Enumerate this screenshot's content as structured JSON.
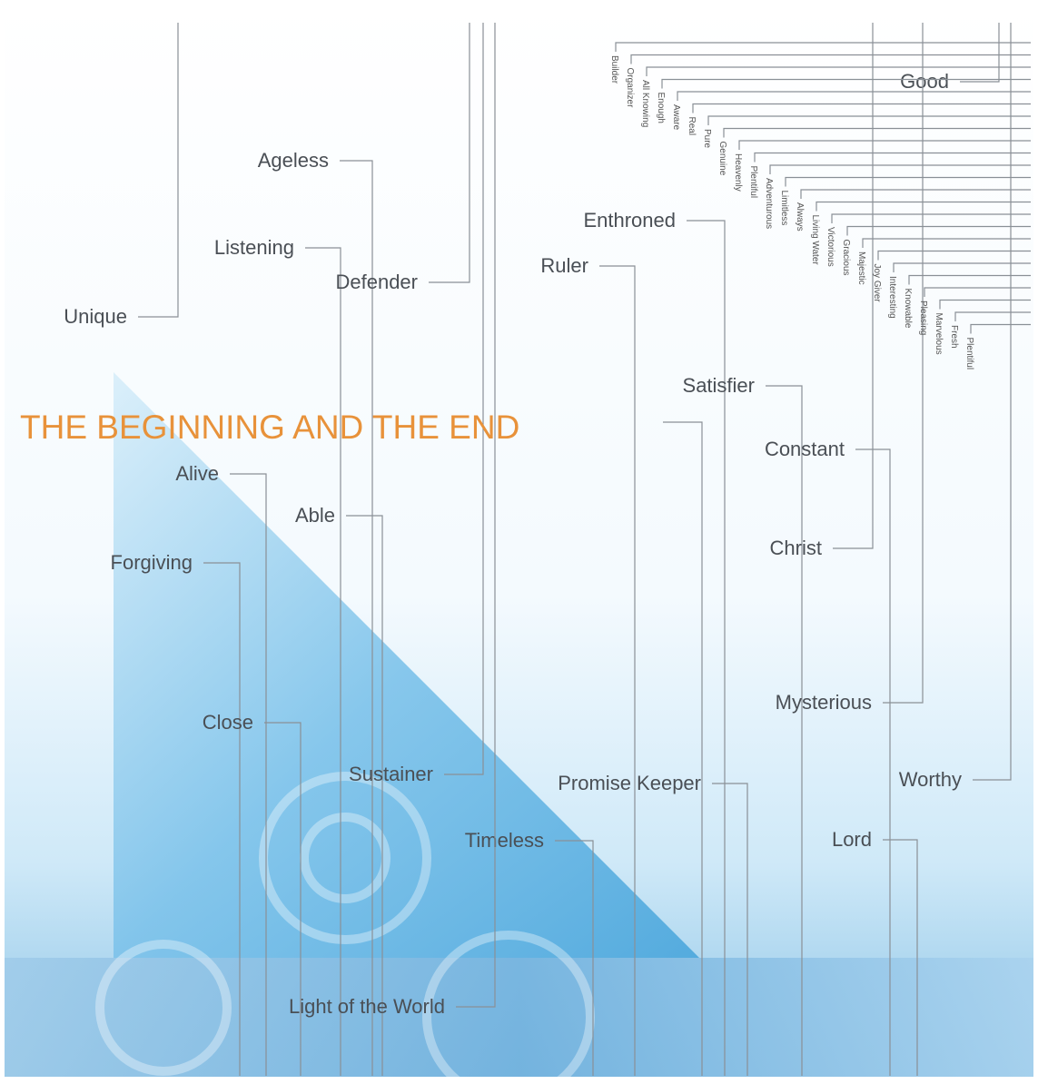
{
  "title": "THE BEGINNING AND THE END",
  "words": [
    "Good",
    "Ageless",
    "Listening",
    "Defender",
    "Unique",
    "Enthroned",
    "Ruler",
    "Satisfier",
    "Constant",
    "Christ",
    "Alive",
    "Able",
    "Forgiving",
    "Mysterious",
    "Close",
    "Sustainer",
    "Promise Keeper",
    "Worthy",
    "Timeless",
    "Lord",
    "Light of the World"
  ],
  "vertical_words": [
    "Builder",
    "Organizer",
    "All Knowing",
    "Enough",
    "Aware",
    "Real",
    "Pure",
    "Genuine",
    "Heavenly",
    "Plentiful",
    "Adventurous",
    "Limitless",
    "Always",
    "Living Water",
    "Victorious",
    "Gracious",
    "Majestic",
    "Joy Giver",
    "Interesting",
    "Knowable",
    "Pleasing",
    "Marvelous",
    "Fresh",
    "Plentiful"
  ]
}
